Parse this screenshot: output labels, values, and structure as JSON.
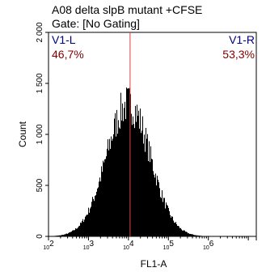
{
  "chart_data": {
    "type": "histogram",
    "title": "A08 delta slpB mutant +CFSE",
    "subtitle": "Gate: [No Gating]",
    "xlabel": "FL1-A",
    "ylabel": "Count",
    "x_scale": "log",
    "xlim": [
      100,
      15848932
    ],
    "ylim": [
      0,
      2000
    ],
    "yticks": [
      0,
      500,
      1000,
      1500,
      2000
    ],
    "ytick_labels": [
      "0",
      "500",
      "1 000",
      "1 500",
      "2 000"
    ],
    "xtick_labels": [
      "10^2",
      "10^3",
      "10^4",
      "10^5",
      "10^6",
      "10^7.2"
    ],
    "grid": false,
    "fill_color": "#000000",
    "peak": {
      "x": 10000,
      "count": 1300
    },
    "gate": {
      "x": 11000,
      "line_color": "#e04040",
      "left": {
        "name": "V1-L",
        "percent": "46,7%"
      },
      "right": {
        "name": "V1-R",
        "percent": "53,3%"
      }
    },
    "gate_label_colors": {
      "name": "#000080",
      "percent": "#800000"
    }
  }
}
